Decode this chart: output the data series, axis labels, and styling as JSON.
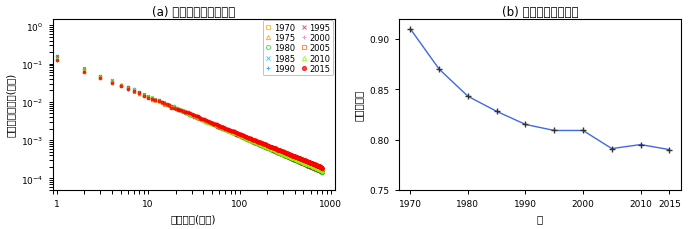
{
  "title_a": "(a) 都市人口シェア分布",
  "title_b": "(b) ジップ係数の変化",
  "xlabel_a": "人口順位(対数)",
  "ylabel_a": "都市人口シェア(対数)",
  "xlabel_b": "年",
  "ylabel_b": "ジップ係数",
  "years": [
    1970,
    1975,
    1980,
    1985,
    1990,
    1995,
    2000,
    2005,
    2010,
    2015
  ],
  "zipf_years": [
    1970,
    1975,
    1980,
    1985,
    1990,
    1995,
    2000,
    2005,
    2010,
    2015
  ],
  "zipf_values": [
    0.91,
    0.87,
    0.843,
    0.828,
    0.815,
    0.809,
    0.809,
    0.791,
    0.795,
    0.79
  ],
  "ylim_b": [
    0.75,
    0.92
  ],
  "yticks_b": [
    0.75,
    0.8,
    0.85,
    0.9
  ],
  "year_styles": {
    "1970": {
      "color": "#FFA500",
      "marker": "s",
      "filled": false
    },
    "1975": {
      "color": "#FF8C00",
      "marker": "^",
      "filled": false
    },
    "1980": {
      "color": "#32CD32",
      "marker": "o",
      "filled": false
    },
    "1985": {
      "color": "#00BFFF",
      "marker": "x",
      "filled": false
    },
    "1990": {
      "color": "#1E90FF",
      "marker": "+",
      "filled": false
    },
    "1995": {
      "color": "#DC143C",
      "marker": "x",
      "filled": false
    },
    "2000": {
      "color": "#FF69B4",
      "marker": "+",
      "filled": false
    },
    "2005": {
      "color": "#FF6600",
      "marker": "s",
      "filled": false
    },
    "2010": {
      "color": "#7CFC00",
      "marker": "^",
      "filled": false
    },
    "2015": {
      "color": "#FF0000",
      "marker": "o",
      "filled": true
    }
  },
  "n_cities": 800,
  "line_color": "#4169E1",
  "marker_color_b": "#333333"
}
